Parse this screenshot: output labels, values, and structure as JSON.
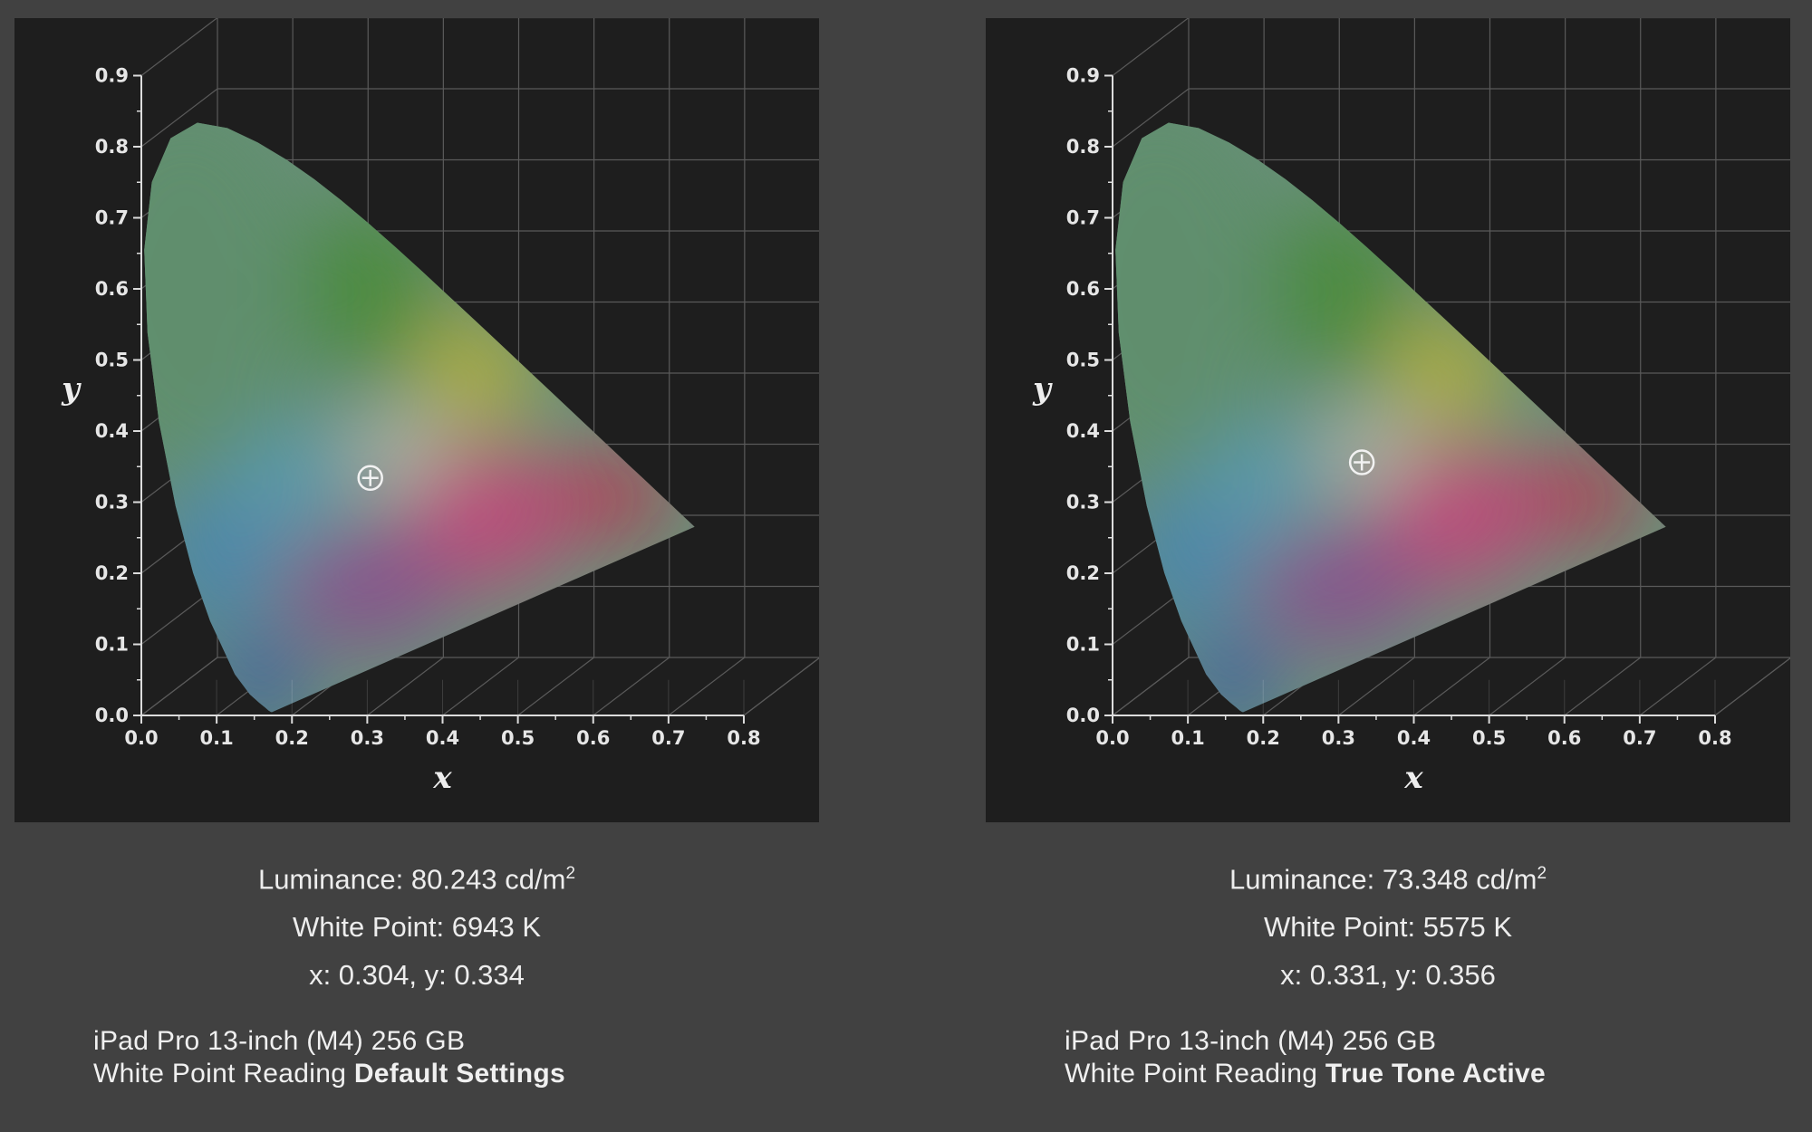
{
  "chart_data": [
    {
      "type": "scatter",
      "title": "",
      "xlabel": "x",
      "ylabel": "y",
      "xlim": [
        0.0,
        0.8
      ],
      "ylim": [
        0.0,
        0.9
      ],
      "x_ticks": [
        "0.0",
        "0.1",
        "0.2",
        "0.3",
        "0.4",
        "0.5",
        "0.6",
        "0.7",
        "0.8"
      ],
      "y_ticks": [
        "0.0",
        "0.1",
        "0.2",
        "0.3",
        "0.4",
        "0.5",
        "0.6",
        "0.7",
        "0.8",
        "0.9"
      ],
      "grid": true,
      "background": "CIE 1931 chromaticity diagram",
      "points": [
        {
          "x": 0.304,
          "y": 0.334
        }
      ],
      "marker": "crosshair-circle"
    },
    {
      "type": "scatter",
      "title": "",
      "xlabel": "x",
      "ylabel": "y",
      "xlim": [
        0.0,
        0.8
      ],
      "ylim": [
        0.0,
        0.9
      ],
      "x_ticks": [
        "0.0",
        "0.1",
        "0.2",
        "0.3",
        "0.4",
        "0.5",
        "0.6",
        "0.7",
        "0.8"
      ],
      "y_ticks": [
        "0.0",
        "0.1",
        "0.2",
        "0.3",
        "0.4",
        "0.5",
        "0.6",
        "0.7",
        "0.8",
        "0.9"
      ],
      "grid": true,
      "background": "CIE 1931 chromaticity diagram",
      "points": [
        {
          "x": 0.331,
          "y": 0.356
        }
      ],
      "marker": "crosshair-circle"
    }
  ],
  "panels": [
    {
      "luminance_prefix": "Luminance: 80.243 cd/m",
      "luminance_sup": "2",
      "white_point": "White Point: 6943 K",
      "xy": "x: 0.304, y: 0.334",
      "device": "iPad Pro 13-inch (M4) 256 GB",
      "reading_prefix": "White Point Reading ",
      "reading_mode": "Default Settings"
    },
    {
      "luminance_prefix": "Luminance: 73.348 cd/m",
      "luminance_sup": "2",
      "white_point": "White Point: 5575 K",
      "xy": "x: 0.331, y: 0.356",
      "device": "iPad Pro 13-inch (M4) 256 GB",
      "reading_prefix": "White Point Reading ",
      "reading_mode": "True Tone Active"
    }
  ],
  "colors": {
    "page_background": "#414141",
    "chart_background": "#1e1e1e",
    "grid": "#5a5a5a",
    "text": "#ececec",
    "gamut_red": "#c8284a",
    "gamut_green": "#4a8a3a",
    "gamut_blue": "#3a5aa8",
    "gamut_yellow": "#b4b03a",
    "gamut_cyan": "#5a9ab0"
  }
}
